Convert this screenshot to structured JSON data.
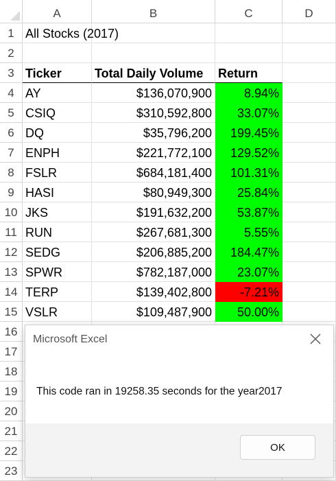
{
  "columns": [
    "A",
    "B",
    "C",
    "D"
  ],
  "rows": [
    "1",
    "2",
    "3",
    "4",
    "5",
    "6",
    "7",
    "8",
    "9",
    "10",
    "11",
    "12",
    "13",
    "14",
    "15",
    "16",
    "17",
    "18",
    "19",
    "20",
    "21",
    "22",
    "23"
  ],
  "sheet": {
    "title": "All Stocks (2017)",
    "headers": {
      "ticker": "Ticker",
      "volume": "Total Daily Volume",
      "return": "Return"
    },
    "data": [
      {
        "ticker": "AY",
        "volume": "$136,070,900",
        "return": "8.94%",
        "status": "positive"
      },
      {
        "ticker": "CSIQ",
        "volume": "$310,592,800",
        "return": "33.07%",
        "status": "positive"
      },
      {
        "ticker": "DQ",
        "volume": "$35,796,200",
        "return": "199.45%",
        "status": "positive"
      },
      {
        "ticker": "ENPH",
        "volume": "$221,772,100",
        "return": "129.52%",
        "status": "positive"
      },
      {
        "ticker": "FSLR",
        "volume": "$684,181,400",
        "return": "101.31%",
        "status": "positive"
      },
      {
        "ticker": "HASI",
        "volume": "$80,949,300",
        "return": "25.84%",
        "status": "positive"
      },
      {
        "ticker": "JKS",
        "volume": "$191,632,200",
        "return": "53.87%",
        "status": "positive"
      },
      {
        "ticker": "RUN",
        "volume": "$267,681,300",
        "return": "5.55%",
        "status": "positive"
      },
      {
        "ticker": "SEDG",
        "volume": "$206,885,200",
        "return": "184.47%",
        "status": "positive"
      },
      {
        "ticker": "SPWR",
        "volume": "$782,187,000",
        "return": "23.07%",
        "status": "positive"
      },
      {
        "ticker": "TERP",
        "volume": "$139,402,800",
        "return": "-7.21%",
        "status": "negative"
      },
      {
        "ticker": "VSLR",
        "volume": "$109,487,900",
        "return": "50.00%",
        "status": "positive"
      }
    ]
  },
  "colors": {
    "positive": "#00ff00",
    "negative": "#ff0000"
  },
  "dialog": {
    "title": "Microsoft Excel",
    "message": "This code ran in 19258.35 seconds for the year2017",
    "ok_label": "OK",
    "close_icon": "close-icon"
  }
}
